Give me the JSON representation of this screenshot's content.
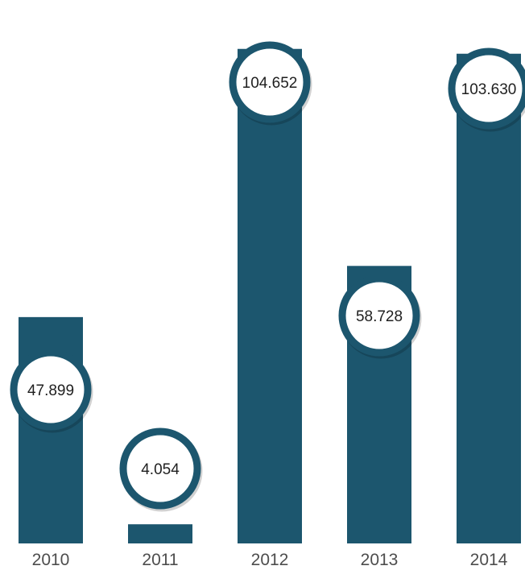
{
  "chart_data": {
    "type": "bar",
    "categories": [
      "2010",
      "2011",
      "2012",
      "2013",
      "2014"
    ],
    "values": [
      47.899,
      4.054,
      104.652,
      58.728,
      103.63
    ],
    "value_labels": [
      "47.899",
      "4.054",
      "104.652",
      "58.728",
      "103.630"
    ],
    "title": "",
    "xlabel": "",
    "ylabel": "",
    "ylim": [
      0,
      115
    ],
    "grid": false,
    "legend": "none",
    "bar_color": "#1c566e",
    "bubble_fill": "#ffffff",
    "bubble_stroke": "#1c566e",
    "label_color": "#4d4d4d"
  }
}
